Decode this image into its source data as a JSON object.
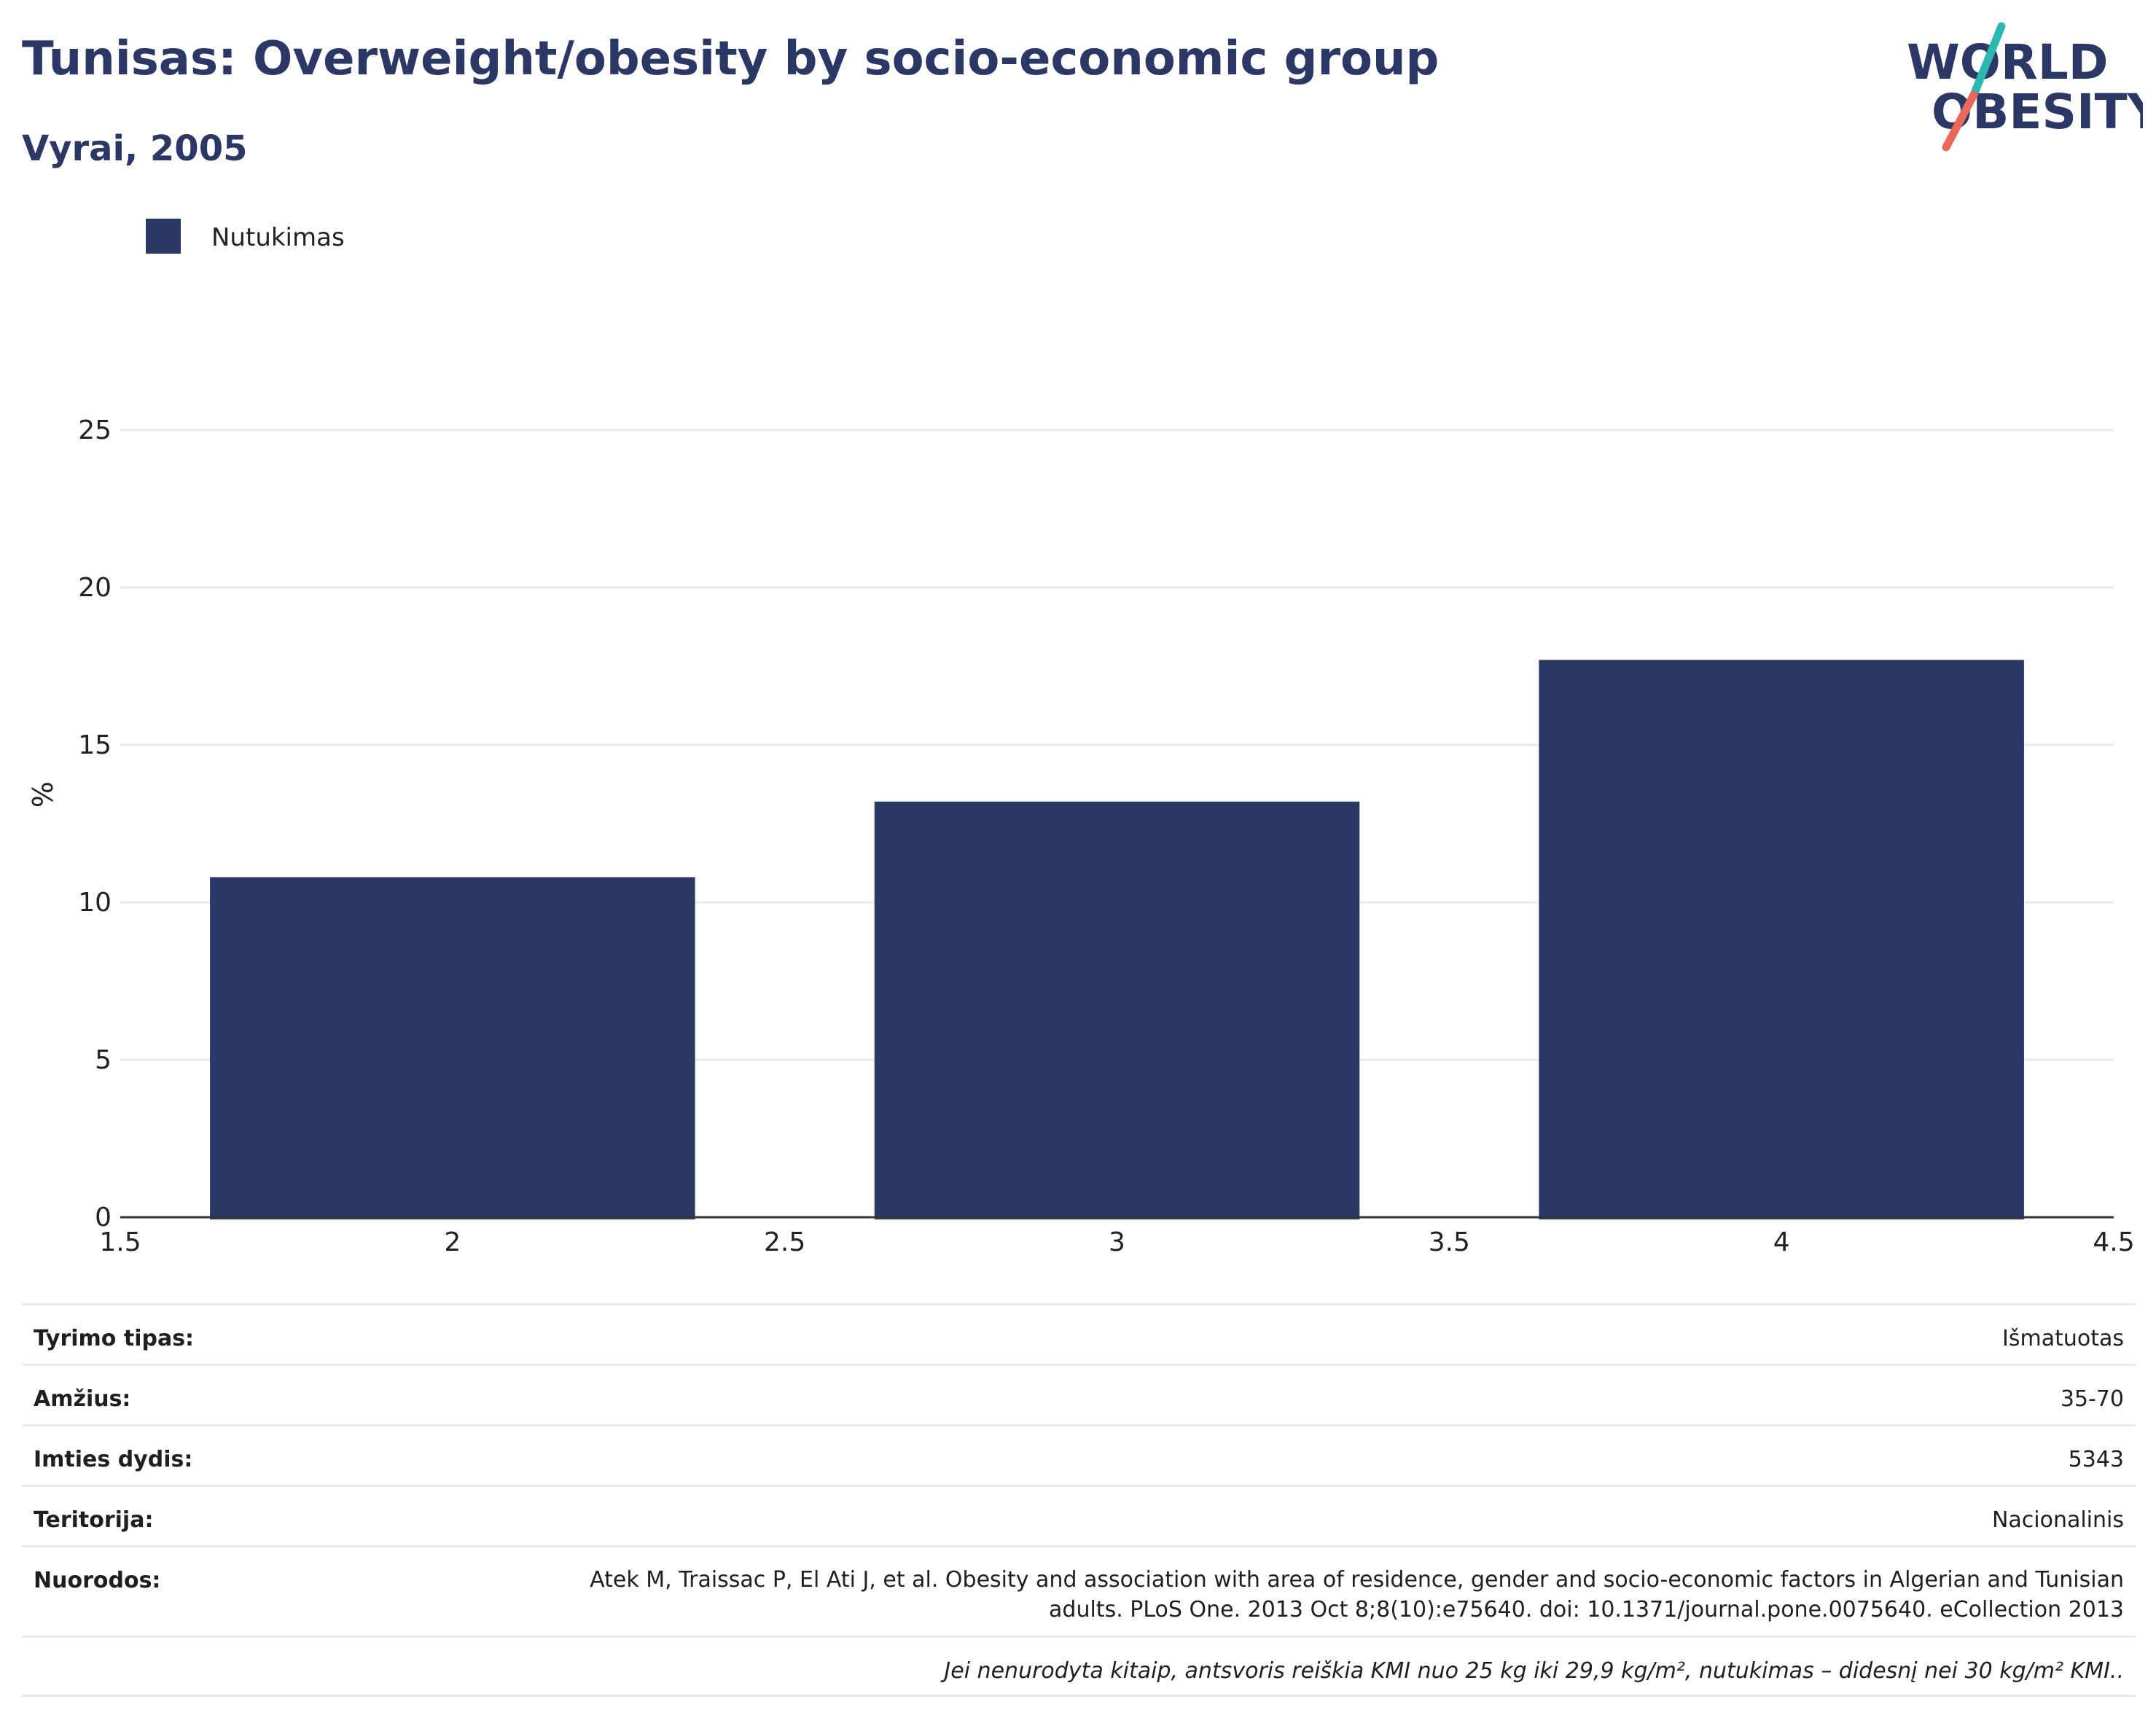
{
  "header": {
    "title": "Tunisas: Overweight/obesity by socio-economic group",
    "subtitle": "Vyrai, 2005"
  },
  "logo": {
    "line1": "WORLD",
    "line2": "OBESITY",
    "colors": {
      "text": "#2b3764",
      "slash_top": "#2bb8b0",
      "slash_bottom": "#e8685a"
    }
  },
  "chart_data": {
    "type": "bar",
    "legend": {
      "position": "top-left",
      "entries": [
        "Nutukimas"
      ]
    },
    "ylabel": "%",
    "xlabel": "",
    "xlim": [
      1.5,
      4.5
    ],
    "ylim": [
      0,
      25
    ],
    "x_ticks": [
      "1.5",
      "2",
      "2.5",
      "3",
      "3.5",
      "4",
      "4.5"
    ],
    "y_ticks": [
      "0",
      "5",
      "10",
      "15",
      "20",
      "25"
    ],
    "grid": true,
    "series": [
      {
        "name": "Nutukimas",
        "color": "#2b3764",
        "x": [
          2,
          3,
          4
        ],
        "values": [
          10.8,
          13.2,
          17.7
        ]
      }
    ]
  },
  "info": {
    "rows": [
      {
        "label": "Tyrimo tipas:",
        "value": "Išmatuotas"
      },
      {
        "label": "Amžius:",
        "value": "35-70"
      },
      {
        "label": "Imties dydis:",
        "value": "5343"
      },
      {
        "label": "Teritorija:",
        "value": "Nacionalinis"
      }
    ],
    "refs_label": "Nuorodos:",
    "refs_value": "Atek M, Traissac P, El Ati J, et al. Obesity and association with area of residence, gender and socio-economic factors in Algerian and Tunisian adults. PLoS One. 2013 Oct 8;8(10):e75640. doi: 10.1371/journal.pone.0075640. eCollection 2013",
    "note": "Jei nenurodyta kitaip, antsvoris reiškia KMI nuo 25 kg iki 29,9 kg/m², nutukimas – didesnį nei 30 kg/m² KMI.."
  }
}
